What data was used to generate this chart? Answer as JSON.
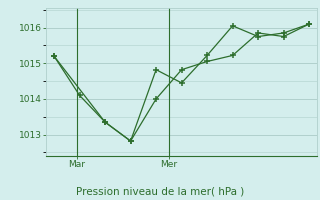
{
  "line1_x": [
    0,
    1,
    2,
    3,
    4,
    5,
    6,
    7,
    8,
    9,
    10
  ],
  "line1_y": [
    1015.2,
    1014.1,
    1013.35,
    1012.82,
    1014.0,
    1014.82,
    1015.05,
    1015.22,
    1015.85,
    1015.75,
    1016.1
  ],
  "line2_x": [
    0,
    2,
    3,
    4,
    5,
    6,
    7,
    8,
    9,
    10
  ],
  "line2_y": [
    1015.2,
    1013.35,
    1012.82,
    1014.82,
    1014.45,
    1015.22,
    1016.05,
    1015.75,
    1015.85,
    1016.1
  ],
  "color": "#2d6e2d",
  "bg_color": "#d4eeed",
  "grid_color": "#b0d0cc",
  "ylabel_ticks": [
    1013,
    1014,
    1015,
    1016
  ],
  "xlabel": "Pression niveau de la mer( hPa )",
  "xtick_positions": [
    0.9,
    4.5
  ],
  "xtick_labels": [
    "Mar",
    "Mer"
  ],
  "vline_x": [
    0.9,
    4.5
  ],
  "ylim": [
    1012.4,
    1016.55
  ],
  "xlim": [
    -0.3,
    10.3
  ]
}
